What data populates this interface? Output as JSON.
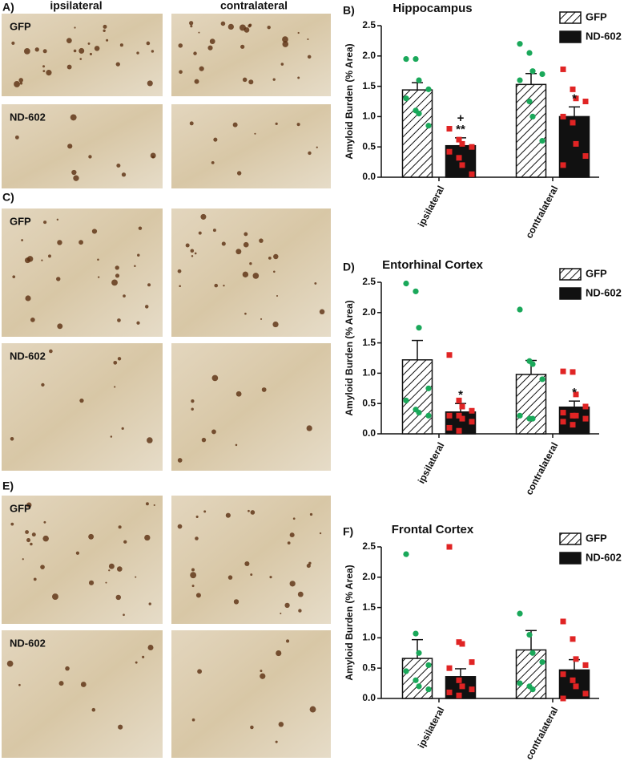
{
  "columns": [
    "ipsilateral",
    "contralateral"
  ],
  "panels": [
    {
      "label": "A)",
      "rows": [
        "GFP",
        "ND-602"
      ]
    },
    {
      "label": "C)",
      "rows": [
        "GFP",
        "ND-602"
      ]
    },
    {
      "label": "E)",
      "rows": [
        "GFP",
        "ND-602"
      ]
    }
  ],
  "chart_data": [
    {
      "type": "bar",
      "panel": "B)",
      "title": "Hippocampus",
      "ylabel": "Amyloid Burden (% Area)",
      "categories": [
        "ipsilateral",
        "contralateral"
      ],
      "ylim": [
        0,
        2.5
      ],
      "yticks": [
        {
          "value": 0,
          "label": "0.0"
        },
        {
          "value": 0.5,
          "label": "0.5"
        },
        {
          "value": 1,
          "label": "1.0"
        },
        {
          "value": 1.5,
          "label": "1.5"
        },
        {
          "value": 2,
          "label": "2.0"
        },
        {
          "value": 2.5,
          "label": "2.5"
        }
      ],
      "series": [
        {
          "name": "GFP",
          "color": "#1aa85a",
          "values": [
            1.44,
            1.53
          ],
          "errors": [
            0.12,
            0.18
          ],
          "points": [
            [
              1.95,
              1.95,
              1.6,
              1.45,
              1.3,
              1.1,
              1.05,
              0.85
            ],
            [
              2.2,
              2.05,
              1.75,
              1.7,
              1.6,
              1.25,
              1.0,
              0.6
            ]
          ]
        },
        {
          "name": "ND-602",
          "color": "#e02424",
          "values": [
            0.52,
            1.0
          ],
          "errors": [
            0.13,
            0.16
          ],
          "points": [
            [
              0.8,
              0.62,
              0.55,
              0.5,
              0.42,
              0.32,
              0.2,
              0.05
            ],
            [
              1.78,
              1.45,
              1.3,
              1.25,
              1.0,
              0.9,
              0.55,
              0.35,
              0.2
            ]
          ],
          "annotations": [
            [
              "+",
              "**"
            ],
            [
              "*"
            ]
          ]
        }
      ]
    },
    {
      "type": "bar",
      "panel": "D)",
      "title": "Entorhinal Cortex",
      "ylabel": "Amyloid Burden (% Area)",
      "categories": [
        "ipsilateral",
        "contralateral"
      ],
      "ylim": [
        0,
        2.5
      ],
      "yticks": [
        {
          "value": 0,
          "label": "0.0"
        },
        {
          "value": 0.5,
          "label": "0.5"
        },
        {
          "value": 1,
          "label": "1.0"
        },
        {
          "value": 1.5,
          "label": "1.5"
        },
        {
          "value": 2,
          "label": "2.0"
        },
        {
          "value": 2.5,
          "label": "2.5"
        }
      ],
      "series": [
        {
          "name": "GFP",
          "color": "#1aa85a",
          "values": [
            1.22,
            0.98
          ],
          "errors": [
            0.32,
            0.23
          ],
          "points": [
            [
              2.48,
              2.35,
              1.75,
              0.75,
              0.55,
              0.4,
              0.35,
              0.3
            ],
            [
              2.05,
              1.2,
              1.15,
              0.9,
              0.3,
              0.25,
              0.25
            ]
          ]
        },
        {
          "name": "ND-602",
          "color": "#e02424",
          "values": [
            0.36,
            0.44
          ],
          "errors": [
            0.14,
            0.1
          ],
          "points": [
            [
              1.3,
              0.55,
              0.45,
              0.38,
              0.3,
              0.3,
              0.25,
              0.2,
              0.1,
              0.05
            ],
            [
              1.03,
              1.02,
              0.65,
              0.45,
              0.35,
              0.3,
              0.3,
              0.25,
              0.2,
              0.15
            ]
          ],
          "annotations": [
            [
              "*"
            ],
            [
              "*"
            ]
          ]
        }
      ]
    },
    {
      "type": "bar",
      "panel": "F)",
      "title": "Frontal Cortex",
      "ylabel": "Amyloid Burden (% Area)",
      "categories": [
        "ipsilateral",
        "contralateral"
      ],
      "ylim": [
        0,
        2.5
      ],
      "yticks": [
        {
          "value": 0,
          "label": "0.0"
        },
        {
          "value": 0.5,
          "label": "0.5"
        },
        {
          "value": 1,
          "label": "1.0"
        },
        {
          "value": 1.5,
          "label": "1.5"
        },
        {
          "value": 2,
          "label": "2.0"
        },
        {
          "value": 2.5,
          "label": "2.5"
        }
      ],
      "series": [
        {
          "name": "GFP",
          "color": "#1aa85a",
          "values": [
            0.66,
            0.8
          ],
          "errors": [
            0.31,
            0.32
          ],
          "points": [
            [
              2.38,
              1.07,
              0.75,
              0.55,
              0.45,
              0.3,
              0.2,
              0.15
            ],
            [
              1.4,
              1.05,
              0.75,
              0.6,
              0.25,
              0.2,
              0.15
            ]
          ]
        },
        {
          "name": "ND-602",
          "color": "#e02424",
          "values": [
            0.36,
            0.47
          ],
          "errors": [
            0.13,
            0.17
          ],
          "points": [
            [
              2.5,
              0.93,
              0.9,
              0.6,
              0.5,
              0.3,
              0.2,
              0.15,
              0.1,
              0.05
            ],
            [
              1.27,
              0.98,
              0.65,
              0.55,
              0.4,
              0.3,
              0.2,
              0.08,
              0.0
            ]
          ]
        }
      ]
    }
  ]
}
